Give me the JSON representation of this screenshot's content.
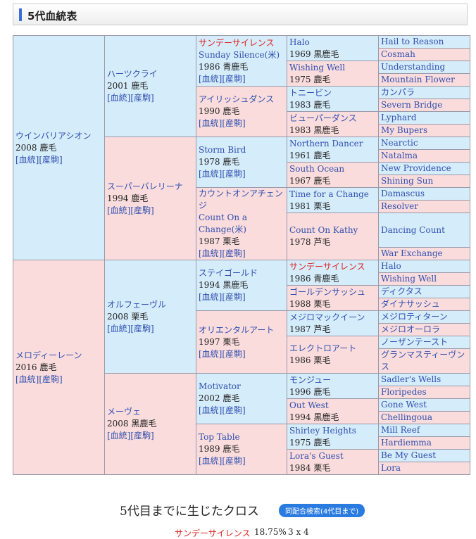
{
  "header": {
    "title": "5代血統表"
  },
  "pedigree": {
    "gen1": [
      {
        "name": "ウインバリアシオン",
        "info": "2008 鹿毛",
        "links": [
          "[血統]",
          "[産駒]"
        ]
      },
      {
        "name": "メロディーレーン",
        "info": "2016 鹿毛",
        "links": [
          "[血統]",
          "[産駒]"
        ]
      }
    ],
    "gen2": [
      {
        "name": "ハーツクライ",
        "info": "2001 鹿毛",
        "links": [
          "[血統]",
          "[産駒]"
        ]
      },
      {
        "name": "スーパーバレリーナ",
        "info": "1994 鹿毛",
        "links": [
          "[血統]",
          "[産駒]"
        ]
      },
      {
        "name": "オルフェーヴル",
        "info": "2008 栗毛",
        "links": [
          "[血統]",
          "[産駒]"
        ]
      },
      {
        "name": "メーヴェ",
        "info": "2008 黒鹿毛",
        "links": [
          "[血統]",
          "[産駒]"
        ]
      }
    ],
    "gen3": [
      {
        "name": "サンデーサイレンス",
        "name2": "Sunday Silence(米)",
        "info": "1986 青鹿毛",
        "links": [
          "[血統]",
          "[産駒]"
        ],
        "cross": true
      },
      {
        "name": "アイリッシュダンス",
        "info": "1990 鹿毛",
        "links": [
          "[血統]",
          "[産駒]"
        ]
      },
      {
        "name": "Storm Bird",
        "info": "1978 鹿毛",
        "links": [
          "[血統]",
          "[産駒]"
        ]
      },
      {
        "name": "カウントオンアチェンジ",
        "name2": "Count On a Change(米)",
        "info": "1987 栗毛",
        "links": [
          "[血統]",
          "[産駒]"
        ]
      },
      {
        "name": "ステイゴールド",
        "info": "1994 黒鹿毛",
        "links": [
          "[血統]",
          "[産駒]"
        ]
      },
      {
        "name": "オリエンタルアート",
        "info": "1997 栗毛",
        "links": [
          "[血統]",
          "[産駒]"
        ]
      },
      {
        "name": "Motivator",
        "info": "2002 鹿毛",
        "links": [
          "[血統]",
          "[産駒]"
        ]
      },
      {
        "name": "Top Table",
        "info": "1989 鹿毛",
        "links": [
          "[血統]",
          "[産駒]"
        ]
      }
    ],
    "gen4": [
      {
        "name": "Halo",
        "info": "1969 黒鹿毛"
      },
      {
        "name": "Wishing Well",
        "info": "1975 鹿毛"
      },
      {
        "name": "トニービン",
        "info": "1983 鹿毛"
      },
      {
        "name": "ビューパーダンス",
        "info": "1983 黒鹿毛"
      },
      {
        "name": "Northern Dancer",
        "info": "1961 鹿毛"
      },
      {
        "name": "South Ocean",
        "info": "1967 鹿毛"
      },
      {
        "name": "Time for a Change",
        "info": "1981 栗毛"
      },
      {
        "name": "Count On Kathy",
        "info": "1978 芦毛"
      },
      {
        "name": "サンデーサイレンス",
        "info": "1986 青鹿毛",
        "cross": true
      },
      {
        "name": "ゴールデンサッシュ",
        "info": "1988 栗毛"
      },
      {
        "name": "メジロマックイーン",
        "info": "1987 芦毛"
      },
      {
        "name": "エレクトロアート",
        "info": "1986 栗毛"
      },
      {
        "name": "モンジュー",
        "info": "1996 鹿毛"
      },
      {
        "name": "Out West",
        "info": "1994 黒鹿毛"
      },
      {
        "name": "Shirley Heights",
        "info": "1975 鹿毛"
      },
      {
        "name": "Lora's Guest",
        "info": "1984 栗毛"
      }
    ],
    "gen5": [
      {
        "name": "Hail to Reason"
      },
      {
        "name": "Cosmah"
      },
      {
        "name": "Understanding"
      },
      {
        "name": "Mountain Flower"
      },
      {
        "name": "カンパラ"
      },
      {
        "name": "Severn Bridge"
      },
      {
        "name": "Lyphard"
      },
      {
        "name": "My Bupers"
      },
      {
        "name": "Nearctic"
      },
      {
        "name": "Natalma"
      },
      {
        "name": "New Providence"
      },
      {
        "name": "Shining Sun"
      },
      {
        "name": "Damascus"
      },
      {
        "name": "Resolver"
      },
      {
        "name": "Dancing Count"
      },
      {
        "name": "War Exchange"
      },
      {
        "name": "Halo"
      },
      {
        "name": "Wishing Well"
      },
      {
        "name": "ディクタス"
      },
      {
        "name": "ダイナサッシュ"
      },
      {
        "name": "メジロティターン"
      },
      {
        "name": "メジロオーロラ"
      },
      {
        "name": "ノーザンテースト"
      },
      {
        "name": "グランマスティーヴンス"
      },
      {
        "name": "Sadler's Wells"
      },
      {
        "name": "Floripedes"
      },
      {
        "name": "Gone West"
      },
      {
        "name": "Chellingoua"
      },
      {
        "name": "Mill Reef"
      },
      {
        "name": "Hardiemma"
      },
      {
        "name": "Be My Guest"
      },
      {
        "name": "Lora"
      }
    ]
  },
  "crosses": {
    "title": "5代目までに生じたクロス",
    "button": "同配合検索(4代目まで)",
    "rows": [
      {
        "name": "サンデーサイレンス",
        "percent": "18.75%",
        "generations": "3 x 4"
      }
    ]
  }
}
